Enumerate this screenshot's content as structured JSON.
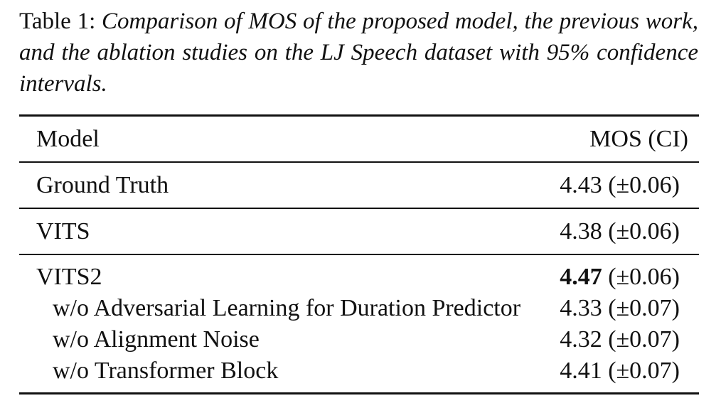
{
  "caption": {
    "label": "Table 1:",
    "text": "Comparison of MOS of the proposed model, the previous work, and the ablation studies on the LJ Speech dataset with 95% confidence intervals."
  },
  "table": {
    "headers": {
      "model": "Model",
      "mos": "MOS (CI)"
    },
    "rows": [
      {
        "model": "Ground Truth",
        "mos": "4.43",
        "ci": "(±0.06)"
      },
      {
        "model": "VITS",
        "mos": "4.38",
        "ci": "(±0.06)"
      },
      {
        "model": "VITS2",
        "mos": "4.47",
        "ci": "(±0.06)"
      },
      {
        "model": "w/o Adversarial Learning for Duration Predictor",
        "mos": "4.33",
        "ci": "(±0.07)"
      },
      {
        "model": "w/o Alignment Noise",
        "mos": "4.32",
        "ci": "(±0.07)"
      },
      {
        "model": "w/o Transformer Block",
        "mos": "4.41",
        "ci": "(±0.07)"
      }
    ]
  }
}
